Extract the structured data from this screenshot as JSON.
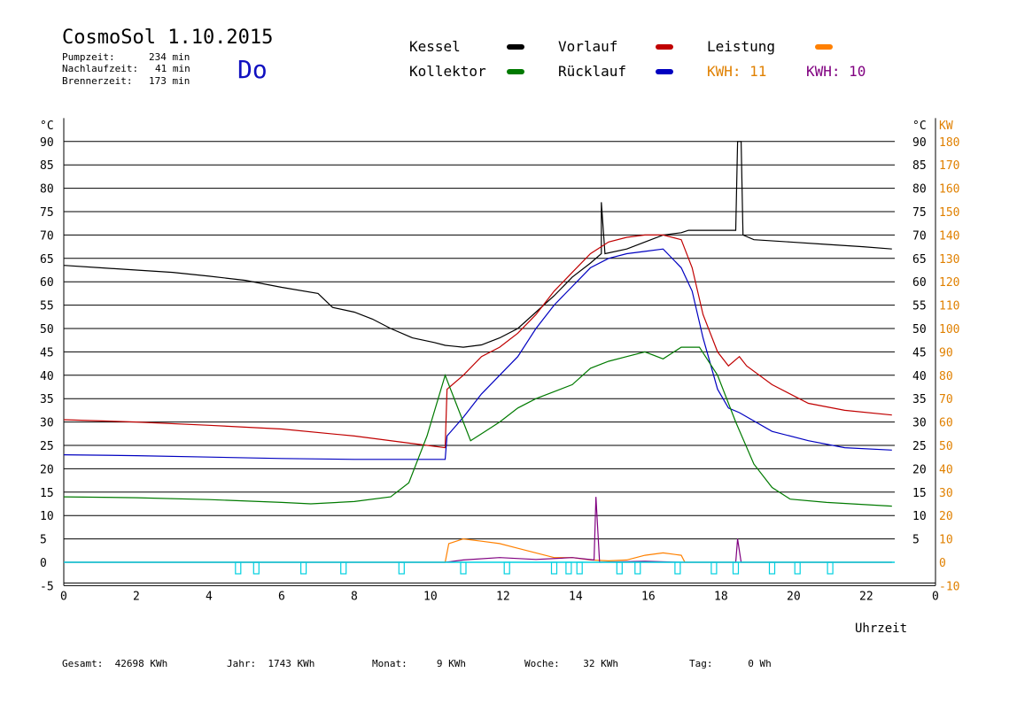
{
  "header": {
    "title": "CosmoSol 1.10.2015",
    "day": "Do",
    "pumpzeit_label": "Pumpzeit:",
    "pumpzeit_value": "234 min",
    "nachlaufzeit_label": "Nachlaufzeit:",
    "nachlaufzeit_value": "41 min",
    "brennerzeit_label": "Brennerzeit:",
    "brennerzeit_value": "173 min"
  },
  "legend": {
    "kessel": "Kessel",
    "kollektor": "Kollektor",
    "vorlauf": "Vorlauf",
    "ruecklauf": "Rücklauf",
    "leistung": "Leistung",
    "kwh1": "KWH: 11",
    "kwh2": "KWH: 10"
  },
  "colors": {
    "kessel": "#000000",
    "kollektor": "#007a00",
    "vorlauf": "#c00000",
    "ruecklauf": "#0000c0",
    "leistung": "#ff8000",
    "kwh2": "#800080",
    "pump": "#00d0e0",
    "right_axis": "#e08000"
  },
  "footer": {
    "gesamt_label": "Gesamt:",
    "gesamt_value": "42698 KWh",
    "jahr_label": "Jahr:",
    "jahr_value": "1743 KWh",
    "monat_label": "Monat:",
    "monat_value": "9 KWh",
    "woche_label": "Woche:",
    "woche_value": "32 KWh",
    "tag_label": "Tag:",
    "tag_value": "0 Wh"
  },
  "chart_data": {
    "type": "line",
    "xlabel": "Uhrzeit",
    "ylabel_left": "°C",
    "ylabel_right_unit1": "°C",
    "ylabel_right_unit2": "KW",
    "xlim": [
      0,
      24
    ],
    "ylim": [
      -5,
      95
    ],
    "x_ticks": [
      "0",
      "2",
      "4",
      "6",
      "8",
      "10",
      "12",
      "14",
      "16",
      "18",
      "20",
      "22",
      "0"
    ],
    "y_ticks": [
      -5,
      0,
      5,
      10,
      15,
      20,
      25,
      30,
      35,
      40,
      45,
      50,
      55,
      60,
      65,
      70,
      75,
      80,
      85,
      90
    ],
    "y_right_ticks_c": [
      5,
      10,
      15,
      20,
      25,
      30,
      35,
      40,
      45,
      50,
      55,
      60,
      65,
      70,
      75,
      80,
      85,
      90
    ],
    "y_right_ticks_kw": [
      -10,
      0,
      10,
      20,
      30,
      40,
      50,
      60,
      70,
      80,
      90,
      100,
      110,
      120,
      130,
      140,
      150,
      160,
      170,
      180
    ],
    "grid": true,
    "series": [
      {
        "name": "Kessel",
        "key": "kessel",
        "points": [
          [
            0,
            63.5
          ],
          [
            1,
            63
          ],
          [
            2,
            62.5
          ],
          [
            3,
            62
          ],
          [
            4,
            61.2
          ],
          [
            5,
            60.3
          ],
          [
            6,
            58.8
          ],
          [
            7,
            57.5
          ],
          [
            7.2,
            56
          ],
          [
            7.4,
            54.5
          ],
          [
            8,
            53.5
          ],
          [
            8.5,
            52
          ],
          [
            9,
            50
          ],
          [
            9.6,
            48
          ],
          [
            10.2,
            47
          ],
          [
            10.5,
            46.4
          ],
          [
            11,
            46
          ],
          [
            11.5,
            46.5
          ],
          [
            12,
            48
          ],
          [
            12.5,
            50
          ],
          [
            13,
            53.5
          ],
          [
            13.5,
            57
          ],
          [
            14,
            61
          ],
          [
            14.5,
            64
          ],
          [
            14.8,
            66
          ],
          [
            14.8,
            77
          ],
          [
            14.9,
            66
          ],
          [
            15.5,
            67
          ],
          [
            16,
            68.5
          ],
          [
            16.5,
            70
          ],
          [
            17,
            70.5
          ],
          [
            17.2,
            71
          ],
          [
            18,
            71
          ],
          [
            18.5,
            71
          ],
          [
            18.55,
            90
          ],
          [
            18.65,
            90
          ],
          [
            18.7,
            70
          ],
          [
            19,
            69
          ],
          [
            20,
            68.5
          ],
          [
            21,
            68
          ],
          [
            22,
            67.5
          ],
          [
            22.8,
            67
          ]
        ]
      },
      {
        "name": "Vorlauf",
        "key": "vorlauf",
        "points": [
          [
            0,
            30.5
          ],
          [
            2,
            30
          ],
          [
            4,
            29.3
          ],
          [
            6,
            28.5
          ],
          [
            8,
            27
          ],
          [
            9.5,
            25.5
          ],
          [
            10.5,
            24.5
          ],
          [
            10.55,
            37
          ],
          [
            11,
            40
          ],
          [
            11.5,
            44
          ],
          [
            12,
            46
          ],
          [
            12.5,
            49
          ],
          [
            13,
            53
          ],
          [
            13.5,
            58
          ],
          [
            14,
            62
          ],
          [
            14.5,
            66
          ],
          [
            15,
            68.5
          ],
          [
            15.5,
            69.5
          ],
          [
            16,
            70
          ],
          [
            16.5,
            70
          ],
          [
            17,
            69
          ],
          [
            17.3,
            63
          ],
          [
            17.6,
            53
          ],
          [
            18,
            45
          ],
          [
            18.3,
            42
          ],
          [
            18.6,
            44
          ],
          [
            18.8,
            42
          ],
          [
            19.5,
            38
          ],
          [
            20.5,
            34
          ],
          [
            21.5,
            32.5
          ],
          [
            22.8,
            31.5
          ]
        ]
      },
      {
        "name": "Rücklauf",
        "key": "ruecklauf",
        "points": [
          [
            0,
            23
          ],
          [
            2,
            22.8
          ],
          [
            4,
            22.5
          ],
          [
            6,
            22.2
          ],
          [
            8,
            22
          ],
          [
            10.5,
            22
          ],
          [
            10.55,
            27
          ],
          [
            11,
            31
          ],
          [
            11.5,
            36
          ],
          [
            12,
            40
          ],
          [
            12.5,
            44
          ],
          [
            13,
            50
          ],
          [
            13.5,
            55
          ],
          [
            14,
            59
          ],
          [
            14.5,
            63
          ],
          [
            15,
            65
          ],
          [
            15.5,
            66
          ],
          [
            16,
            66.5
          ],
          [
            16.5,
            67
          ],
          [
            17,
            63
          ],
          [
            17.3,
            58
          ],
          [
            17.6,
            48
          ],
          [
            18,
            37
          ],
          [
            18.3,
            33
          ],
          [
            18.6,
            32
          ],
          [
            19.5,
            28
          ],
          [
            20.5,
            26
          ],
          [
            21.5,
            24.5
          ],
          [
            22.8,
            24
          ]
        ]
      },
      {
        "name": "Kollektor",
        "key": "kollektor",
        "points": [
          [
            0,
            14
          ],
          [
            2,
            13.8
          ],
          [
            4,
            13.4
          ],
          [
            6,
            12.8
          ],
          [
            6.8,
            12.5
          ],
          [
            8,
            13
          ],
          [
            9,
            14
          ],
          [
            9.5,
            17
          ],
          [
            10,
            27
          ],
          [
            10.5,
            40
          ],
          [
            10.8,
            34
          ],
          [
            11.2,
            26
          ],
          [
            11.6,
            28
          ],
          [
            12,
            30
          ],
          [
            12.5,
            33
          ],
          [
            13,
            35
          ],
          [
            13.5,
            36.5
          ],
          [
            14,
            38
          ],
          [
            14.5,
            41.5
          ],
          [
            15,
            43
          ],
          [
            15.5,
            44
          ],
          [
            16,
            45
          ],
          [
            16.5,
            43.5
          ],
          [
            17,
            46
          ],
          [
            17.5,
            46
          ],
          [
            18,
            40
          ],
          [
            18.5,
            30
          ],
          [
            19,
            21
          ],
          [
            19.5,
            16
          ],
          [
            20,
            13.5
          ],
          [
            21,
            12.8
          ],
          [
            22.8,
            12
          ]
        ]
      },
      {
        "name": "Leistung",
        "key": "leistung",
        "points": [
          [
            0,
            0
          ],
          [
            10.5,
            0
          ],
          [
            10.6,
            4
          ],
          [
            11,
            5
          ],
          [
            11.5,
            4.5
          ],
          [
            12,
            4
          ],
          [
            12.5,
            3
          ],
          [
            13,
            2
          ],
          [
            13.5,
            1
          ],
          [
            14,
            1
          ],
          [
            14.5,
            0.5
          ],
          [
            15,
            0.3
          ],
          [
            15.5,
            0.5
          ],
          [
            16,
            1.5
          ],
          [
            16.5,
            2
          ],
          [
            17,
            1.5
          ],
          [
            17.1,
            0
          ],
          [
            22.8,
            0
          ]
        ]
      },
      {
        "name": "KWH",
        "key": "kwh2",
        "points": [
          [
            0,
            0
          ],
          [
            10.5,
            0
          ],
          [
            11,
            0.5
          ],
          [
            12,
            1
          ],
          [
            13,
            0.6
          ],
          [
            14,
            1
          ],
          [
            14.6,
            0.5
          ],
          [
            14.65,
            14
          ],
          [
            14.75,
            0
          ],
          [
            16,
            0.2
          ],
          [
            17,
            0
          ],
          [
            18.5,
            0
          ],
          [
            18.55,
            5
          ],
          [
            18.65,
            0
          ],
          [
            22.8,
            0
          ]
        ]
      },
      {
        "name": "Pumpe",
        "key": "pump",
        "points": []
      }
    ],
    "pump_x": [
      4.8,
      5.3,
      6.6,
      7.7,
      9.3,
      11.0,
      12.2,
      13.5,
      13.9,
      14.2,
      15.3,
      15.8,
      16.9,
      17.9,
      18.5,
      19.5,
      20.2,
      21.1
    ]
  }
}
